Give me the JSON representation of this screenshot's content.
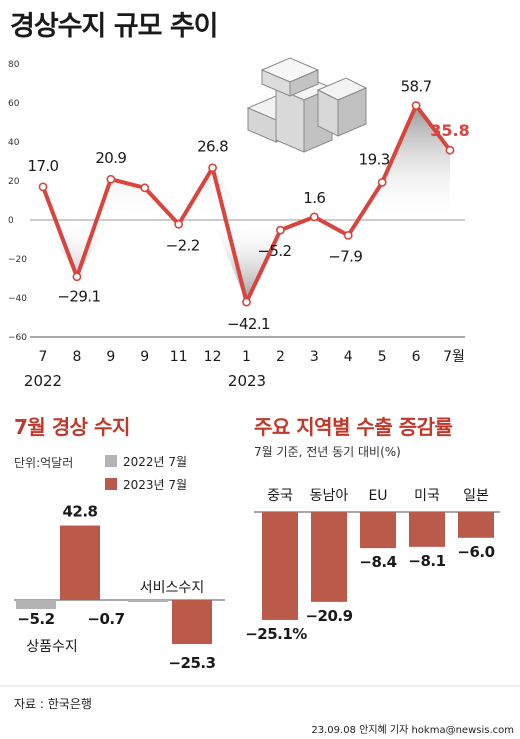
{
  "title": "경상수지 규모 추이",
  "colors": {
    "line": "#d9453e",
    "bar_2023": "#b95a4b",
    "bar_2022": "#b3b3b3",
    "title_red": "#c0392b"
  },
  "icon": "money-stack-icon",
  "chart_data": [
    {
      "type": "line",
      "title": "경상수지 규모 추이",
      "x": [
        "7",
        "8",
        "9",
        "9",
        "11",
        "12",
        "1",
        "2",
        "3",
        "4",
        "5",
        "6",
        "7월"
      ],
      "year_labels": [
        "2022",
        "2023"
      ],
      "value_labels": [
        "17.0",
        "−29.1",
        "20.9",
        "",
        "−2.2",
        "26.8",
        "−42.1",
        "−5.2",
        "1.6",
        "−7.9",
        "19.3",
        "58.7",
        "35.8"
      ],
      "series": [
        {
          "values": [
            17.0,
            -29.1,
            20.9,
            16.5,
            -2.2,
            26.8,
            -42.1,
            -5.2,
            1.6,
            -7.9,
            19.3,
            58.7,
            35.8
          ]
        }
      ],
      "ylim": [
        -60,
        80
      ],
      "yticks": [
        "80",
        "60",
        "40",
        "20",
        "0",
        "−20",
        "−40",
        "−60"
      ],
      "grid": false
    },
    {
      "type": "bar",
      "title": "7월 경상 수지",
      "unit_note": "단위:억달러",
      "categories": [
        "상품수지",
        "서비스수지"
      ],
      "series": [
        {
          "name": "2022년 7월",
          "values": [
            -5.2,
            -0.7
          ]
        },
        {
          "name": "2023년 7월",
          "values": [
            42.8,
            -25.3
          ]
        }
      ],
      "value_labels": [
        "−5.2",
        "42.8",
        "−0.7",
        "−25.3"
      ]
    },
    {
      "type": "bar",
      "title": "주요 지역별 수출 증감률",
      "subtitle": "7월 기준, 전년 동기 대비(%)",
      "categories": [
        "중국",
        "동남아",
        "EU",
        "미국",
        "일본"
      ],
      "values": [
        -25.1,
        -20.9,
        -8.4,
        -8.1,
        -6.0
      ],
      "value_labels": [
        "−25.1%",
        "−20.9",
        "−8.4",
        "−8.1",
        "−6.0"
      ]
    }
  ],
  "footer": {
    "source": "자료 : 한국은행",
    "credit": "23.09.08 안지혜 기자 hokma@newsis.com"
  }
}
